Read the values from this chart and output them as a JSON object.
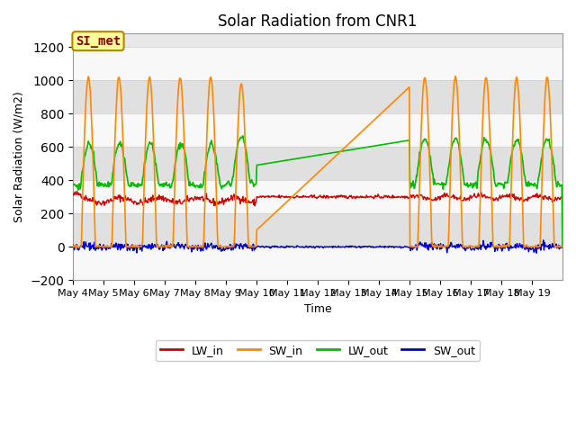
{
  "title": "Solar Radiation from CNR1",
  "xlabel": "Time",
  "ylabel": "Solar Radiation (W/m2)",
  "ylim": [
    -200,
    1280
  ],
  "yticks": [
    -200,
    0,
    200,
    400,
    600,
    800,
    1000,
    1200
  ],
  "n_days": 16,
  "bg_color": "#ffffff",
  "plot_bg_light": "#f0f0f0",
  "plot_bg_dark": "#e0e0e0",
  "line_colors": {
    "LW_in": "#cc0000",
    "SW_in": "#ff8800",
    "LW_out": "#00bb00",
    "SW_out": "#0000cc"
  },
  "annotation_text": "SI_met",
  "annotation_color": "#880000",
  "annotation_bg": "#ffff99",
  "annotation_edge": "#aa8800",
  "legend_labels": [
    "LW_in",
    "SW_in",
    "LW_out",
    "SW_out"
  ],
  "tick_labels": [
    "May 4",
    "May 5",
    "May 6",
    "May 7",
    "May 8",
    "May 9",
    "May 10",
    "May 11",
    "May 12",
    "May 13",
    "May 14",
    "May 15",
    "May 16",
    "May 17",
    "May 18",
    "May 19"
  ],
  "title_fontsize": 12,
  "axis_fontsize": 9,
  "tick_fontsize": 8
}
